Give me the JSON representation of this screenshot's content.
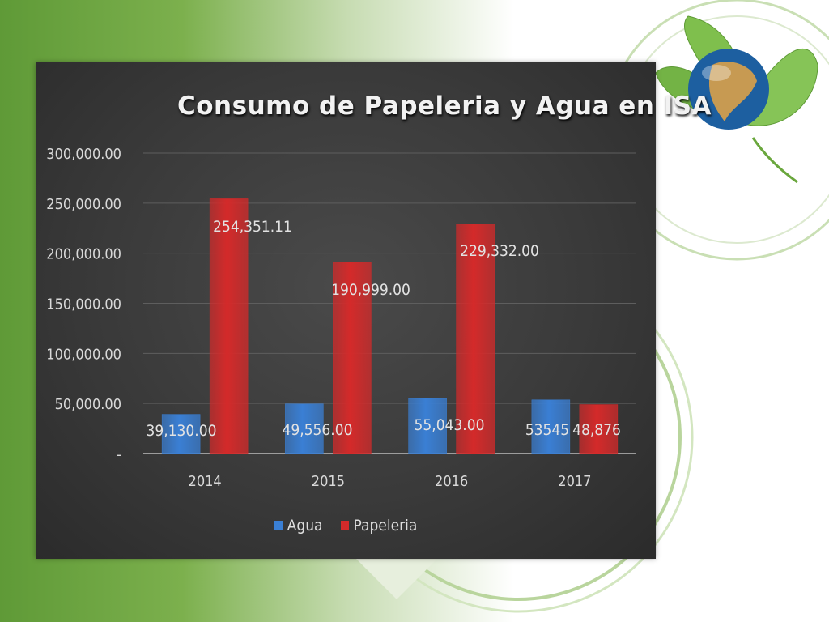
{
  "chart_data": {
    "type": "bar",
    "title": "Consumo de Papeleria y Agua en ISA",
    "categories": [
      "2014",
      "2015",
      "2016",
      "2017"
    ],
    "series": [
      {
        "name": "Agua",
        "color": "#3a7fd4",
        "values": [
          39130,
          49556,
          55043,
          53545
        ],
        "labels": [
          "39,130.00",
          "49,556.00",
          "55,043.00",
          "53545"
        ]
      },
      {
        "name": "Papeleria",
        "color": "#d42a2a",
        "values": [
          254351.11,
          190999,
          229332,
          48876
        ],
        "labels": [
          "254,351.11",
          "190,999.00",
          "229,332.00",
          "48,876"
        ]
      }
    ],
    "yticks": [
      "-",
      "50,000.00",
      "100,000.00",
      "150,000.00",
      "200,000.00",
      "250,000.00",
      "300,000.00"
    ],
    "ylim": [
      0,
      300000
    ],
    "grid": true,
    "legend_position": "bottom"
  }
}
